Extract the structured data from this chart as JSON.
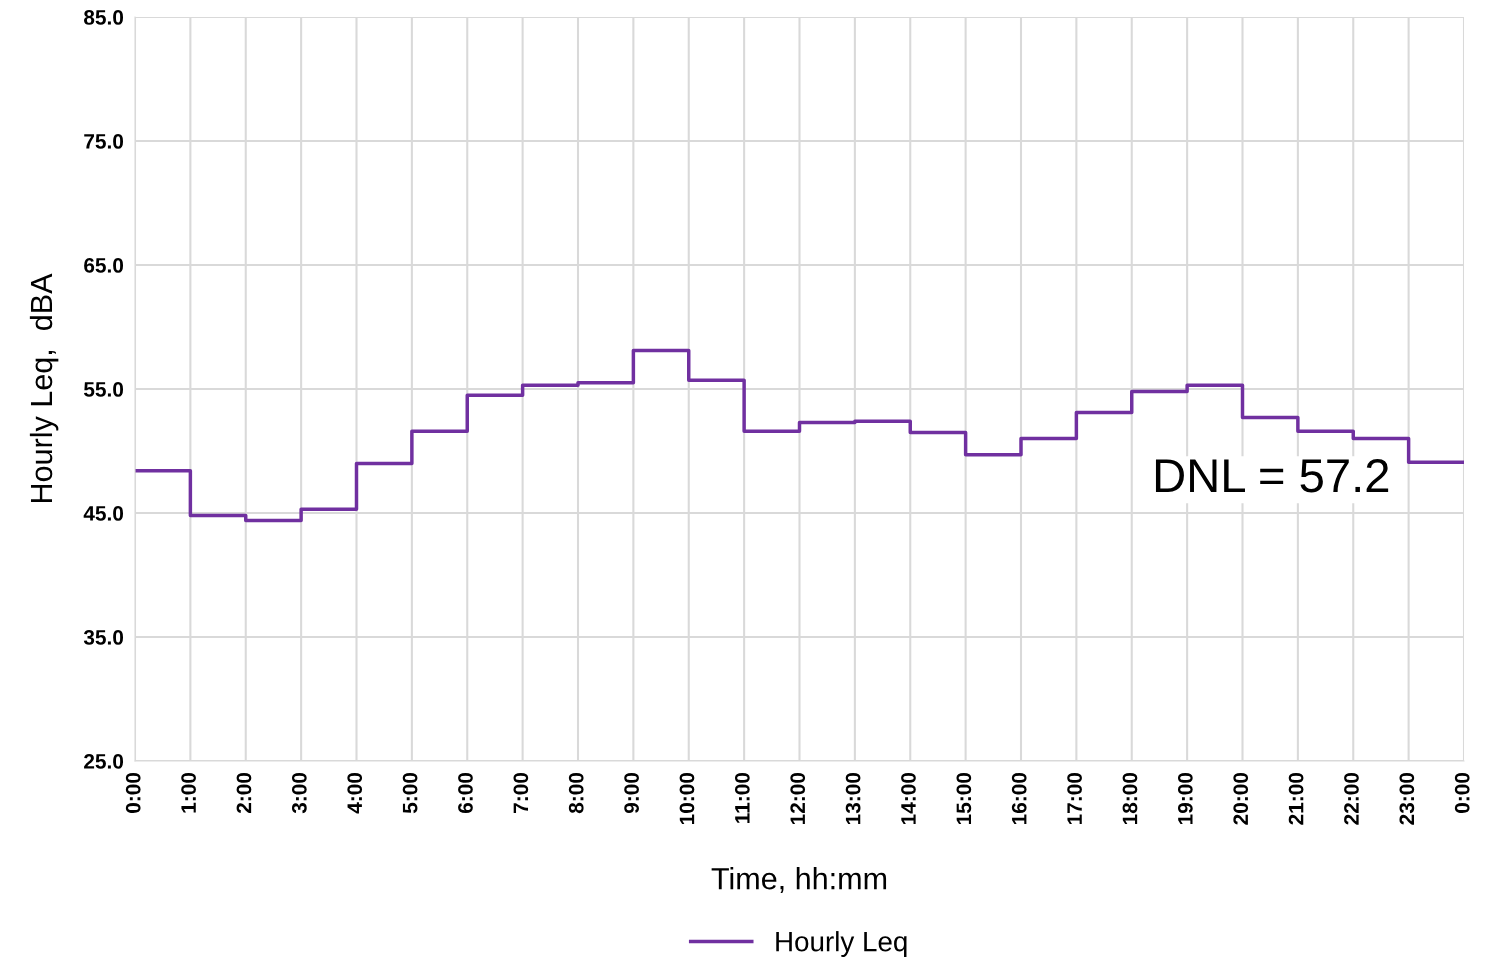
{
  "chart_data": {
    "type": "step",
    "ylabel": "Hourly Leq,  dBA",
    "xlabel": "Time, hh:mm",
    "x": [
      0,
      1,
      2,
      3,
      4,
      5,
      6,
      7,
      8,
      9,
      10,
      11,
      12,
      13,
      14,
      15,
      16,
      17,
      18,
      19,
      20,
      21,
      22,
      23,
      24
    ],
    "series": [
      {
        "name": "Hourly Leq",
        "color": "#7030a0",
        "values": [
          48.4,
          44.8,
          44.4,
          45.3,
          49.0,
          51.6,
          54.5,
          55.3,
          55.5,
          58.1,
          55.7,
          51.6,
          52.3,
          52.4,
          51.5,
          49.7,
          51.0,
          53.1,
          54.8,
          55.3,
          52.7,
          51.6,
          51.0,
          49.1,
          49.1
        ]
      }
    ],
    "xlim": [
      0,
      24
    ],
    "xticks": [
      {
        "value": 0,
        "label": "0:00"
      },
      {
        "value": 1,
        "label": "1:00"
      },
      {
        "value": 2,
        "label": "2:00"
      },
      {
        "value": 3,
        "label": "3:00"
      },
      {
        "value": 4,
        "label": "4:00"
      },
      {
        "value": 5,
        "label": "5:00"
      },
      {
        "value": 6,
        "label": "6:00"
      },
      {
        "value": 7,
        "label": "7:00"
      },
      {
        "value": 8,
        "label": "8:00"
      },
      {
        "value": 9,
        "label": "9:00"
      },
      {
        "value": 10,
        "label": "10:00"
      },
      {
        "value": 11,
        "label": "11:00"
      },
      {
        "value": 12,
        "label": "12:00"
      },
      {
        "value": 13,
        "label": "13:00"
      },
      {
        "value": 14,
        "label": "14:00"
      },
      {
        "value": 15,
        "label": "15:00"
      },
      {
        "value": 16,
        "label": "16:00"
      },
      {
        "value": 17,
        "label": "17:00"
      },
      {
        "value": 18,
        "label": "18:00"
      },
      {
        "value": 19,
        "label": "19:00"
      },
      {
        "value": 20,
        "label": "20:00"
      },
      {
        "value": 21,
        "label": "21:00"
      },
      {
        "value": 22,
        "label": "22:00"
      },
      {
        "value": 23,
        "label": "23:00"
      },
      {
        "value": 24,
        "label": "0:00"
      }
    ],
    "ylim": [
      25,
      85
    ],
    "yticks": [
      {
        "value": 25,
        "label": "25.0"
      },
      {
        "value": 35,
        "label": "35.0"
      },
      {
        "value": 45,
        "label": "45.0"
      },
      {
        "value": 55,
        "label": "55.0"
      },
      {
        "value": 65,
        "label": "65.0"
      },
      {
        "value": 75,
        "label": "75.0"
      },
      {
        "value": 85,
        "label": "85.0"
      }
    ],
    "annotations": [
      "DNL = 57.2"
    ],
    "grid": true,
    "legend": "bottom",
    "line_style": "solid",
    "marker": "none"
  }
}
